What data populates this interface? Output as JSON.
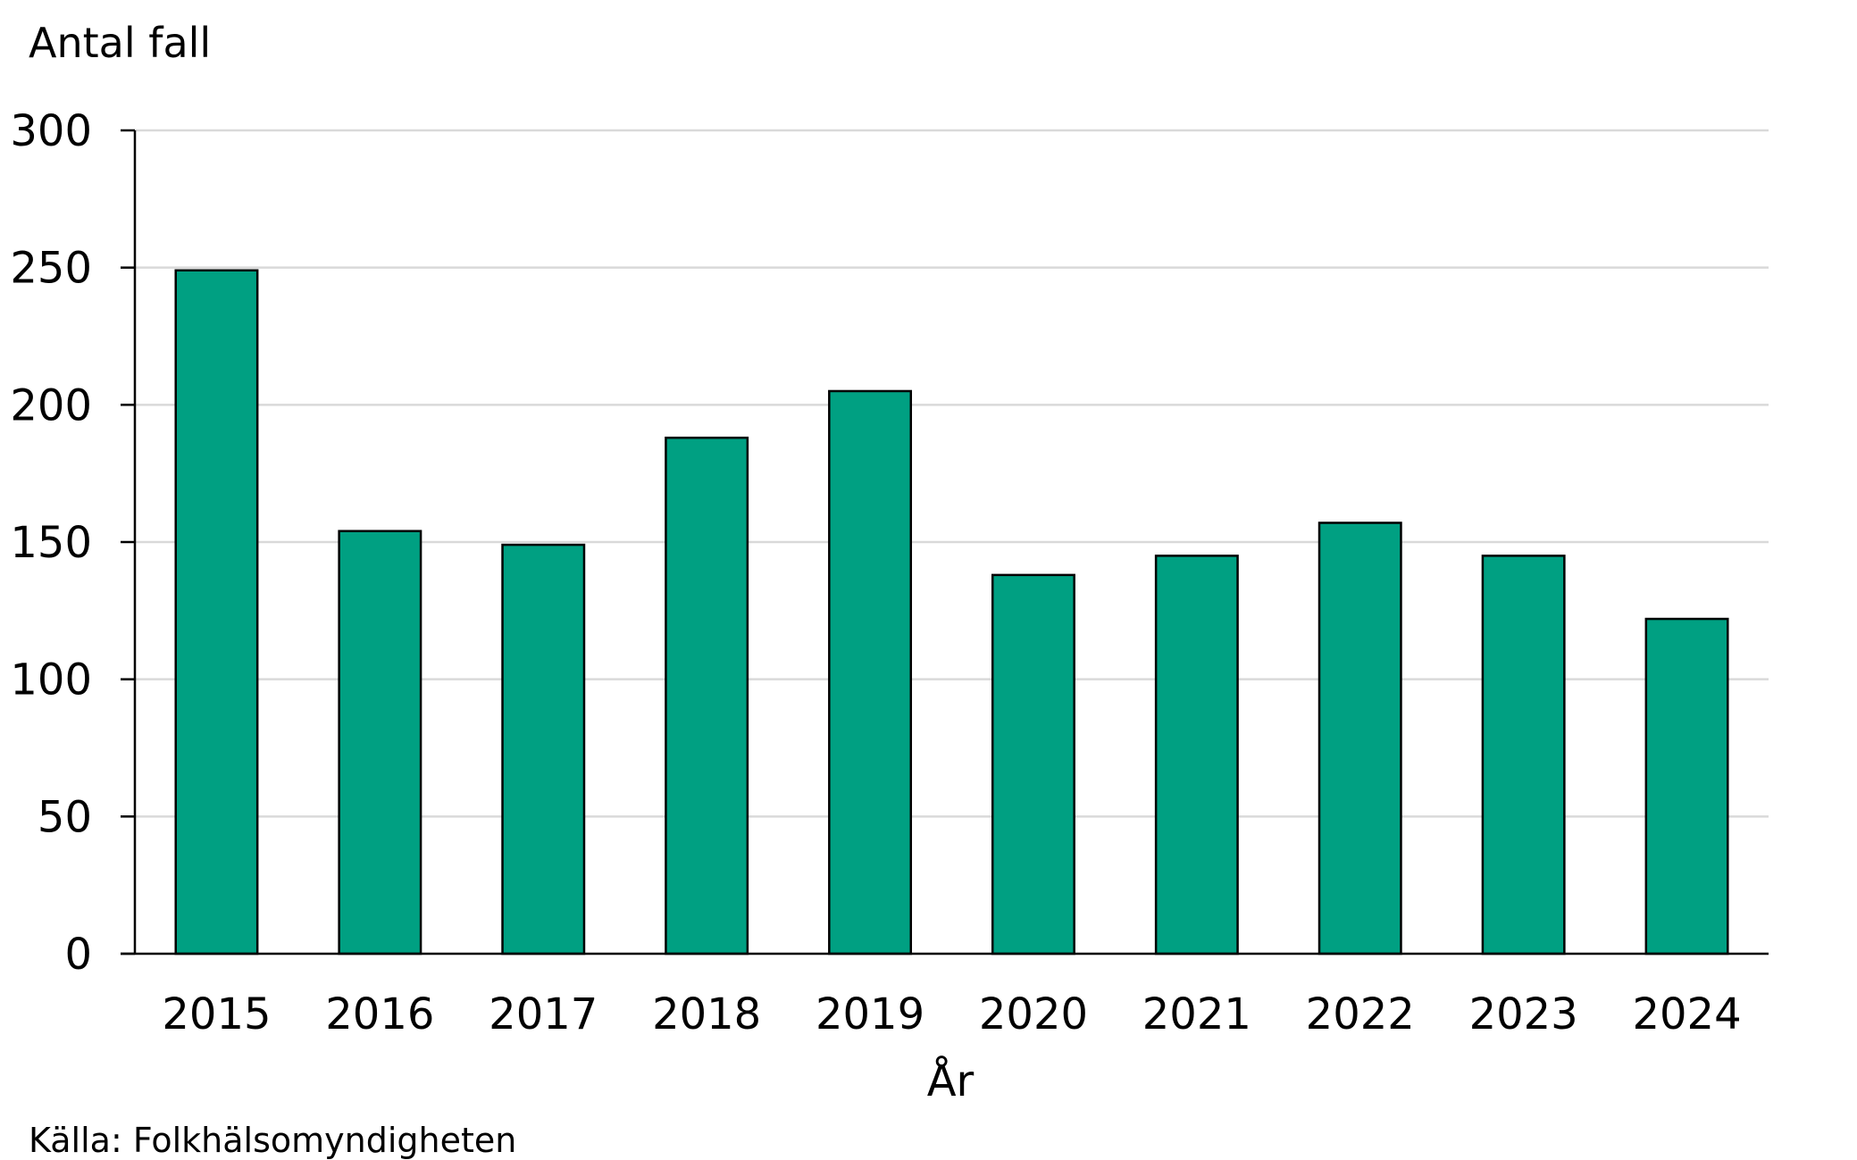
{
  "chart_data": {
    "type": "bar",
    "ylabel": "Antal fall",
    "xlabel": "År",
    "categories": [
      "2015",
      "2016",
      "2017",
      "2018",
      "2019",
      "2020",
      "2021",
      "2022",
      "2023",
      "2024"
    ],
    "values": [
      249,
      154,
      149,
      188,
      205,
      138,
      145,
      157,
      145,
      122
    ],
    "ylim": [
      0,
      300
    ],
    "yticks": [
      0,
      50,
      100,
      150,
      200,
      250,
      300
    ],
    "grid": true,
    "bar_color": "#00A082",
    "source": "Källa: Folkhälsomyndigheten"
  }
}
